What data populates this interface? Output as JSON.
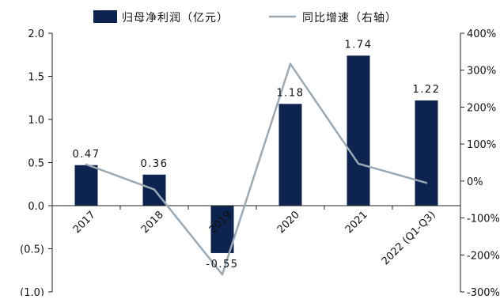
{
  "chart_data": {
    "type": "bar",
    "categories": [
      "2017",
      "2018",
      "2019",
      "2020",
      "2021",
      "2022 (Q1-Q3)"
    ],
    "series": [
      {
        "name": "归母净利润（亿元）",
        "type": "bar",
        "axis": "left",
        "values": [
          0.47,
          0.36,
          -0.55,
          1.18,
          1.74,
          1.22
        ],
        "labels": [
          "0.47",
          "0.36",
          "-0.55",
          "1.18",
          "1.74",
          "1.22"
        ],
        "color": "#0d2350"
      },
      {
        "name": "同比增速（右轴）",
        "type": "line",
        "axis": "right",
        "values": [
          45,
          -23,
          -253,
          317,
          47,
          -5
        ],
        "color": "#9aa9b4"
      }
    ],
    "y_left": {
      "range": [
        -1.0,
        2.0
      ],
      "ticks": [
        2.0,
        1.5,
        1.0,
        0.5,
        0.0,
        -0.5,
        -1.0
      ],
      "tick_labels": [
        "2.0",
        "1.5",
        "1.0",
        "0.5",
        "0.0",
        "(0.5)",
        "(1.0)"
      ],
      "negative_color": "#e0302a"
    },
    "y_right": {
      "range": [
        -300,
        400
      ],
      "ticks": [
        400,
        300,
        200,
        100,
        0,
        -100,
        -200,
        -300
      ],
      "tick_labels": [
        "400%",
        "300%",
        "200%",
        "100%",
        "0%",
        "-100%",
        "-200%",
        "-300%"
      ]
    },
    "legend_position": "top",
    "grid": false
  }
}
